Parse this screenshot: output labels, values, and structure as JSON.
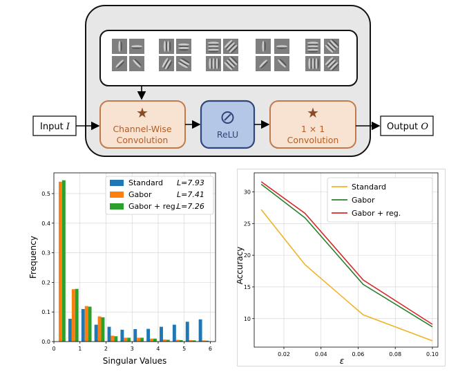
{
  "diagram": {
    "input_label": "Input",
    "input_symbol": "I",
    "output_label": "Output",
    "output_symbol": "O",
    "channel_wise_line1": "Channel-Wise",
    "channel_wise_line2": "Convolution",
    "relu_label": "ReLU",
    "pointwise_line1": "1 × 1",
    "pointwise_line2": "Convolution",
    "colors": {
      "outer_fill": "#e7e7e7",
      "conv_fill": "#f8e3d2",
      "conv_stroke": "#c07a4a",
      "conv_text": "#b25c23",
      "star": "#8a4a22",
      "relu_fill": "#b5c7e6",
      "relu_stroke": "#2f4478",
      "relu_text": "#2f4478"
    },
    "filter_bank": {
      "groups": 5,
      "tiles_per_group": 4,
      "description_icons": [
        "gabor-filter-icon"
      ]
    }
  },
  "chart_data": [
    {
      "type": "bar",
      "xlabel": "Singular Values",
      "ylabel": "Frequency",
      "xlim": [
        0,
        6.2
      ],
      "ylim": [
        0,
        0.57
      ],
      "xticks": [
        "0",
        "1",
        "2",
        "3",
        "4",
        "5",
        "6"
      ],
      "yticks": [
        "0.0",
        "0.1",
        "0.2",
        "0.3",
        "0.4",
        "0.5"
      ],
      "bin_centers": [
        0.25,
        0.75,
        1.25,
        1.75,
        2.25,
        2.75,
        3.25,
        3.75,
        4.25,
        4.75,
        5.25,
        5.75
      ],
      "series": [
        {
          "name": "Standard",
          "color": "#1f77b4",
          "L": "L=7.93",
          "values": [
            0.0,
            0.077,
            0.11,
            0.057,
            0.05,
            0.04,
            0.042,
            0.043,
            0.05,
            0.057,
            0.067,
            0.075
          ]
        },
        {
          "name": "Gabor",
          "color": "#ff7f0e",
          "L": "L=7.41",
          "values": [
            0.54,
            0.177,
            0.12,
            0.085,
            0.02,
            0.013,
            0.013,
            0.01,
            0.007,
            0.006,
            0.005,
            0.004
          ]
        },
        {
          "name": "Gabor + reg.",
          "color": "#2ca02c",
          "L": "L=7.26",
          "values": [
            0.545,
            0.178,
            0.118,
            0.082,
            0.018,
            0.013,
            0.013,
            0.01,
            0.006,
            0.005,
            0.004,
            0.003
          ]
        }
      ],
      "legend_location": "top-right",
      "grid": true
    },
    {
      "type": "line",
      "xlabel": "ε",
      "ylabel": "Accuracy",
      "xlim": [
        0.004,
        0.103
      ],
      "ylim": [
        5.5,
        33
      ],
      "xticks": [
        "0.02",
        "0.04",
        "0.06",
        "0.08",
        "0.10"
      ],
      "xtick_values": [
        0.02,
        0.04,
        0.06,
        0.08,
        0.1
      ],
      "yticks": [
        "10",
        "15",
        "20",
        "25",
        "30"
      ],
      "ytick_values": [
        10,
        15,
        20,
        25,
        30
      ],
      "x": [
        0.0078,
        0.0314,
        0.0627,
        0.1
      ],
      "series": [
        {
          "name": "Standard",
          "color": "#f0b325",
          "values": [
            27.2,
            18.5,
            10.6,
            6.5
          ]
        },
        {
          "name": "Gabor",
          "color": "#2a7f2a",
          "values": [
            31.2,
            25.9,
            15.4,
            8.7
          ]
        },
        {
          "name": "Gabor + reg.",
          "color": "#d62728",
          "values": [
            31.6,
            26.6,
            16.1,
            9.1
          ]
        }
      ],
      "legend_location": "top-right",
      "grid": true
    }
  ]
}
